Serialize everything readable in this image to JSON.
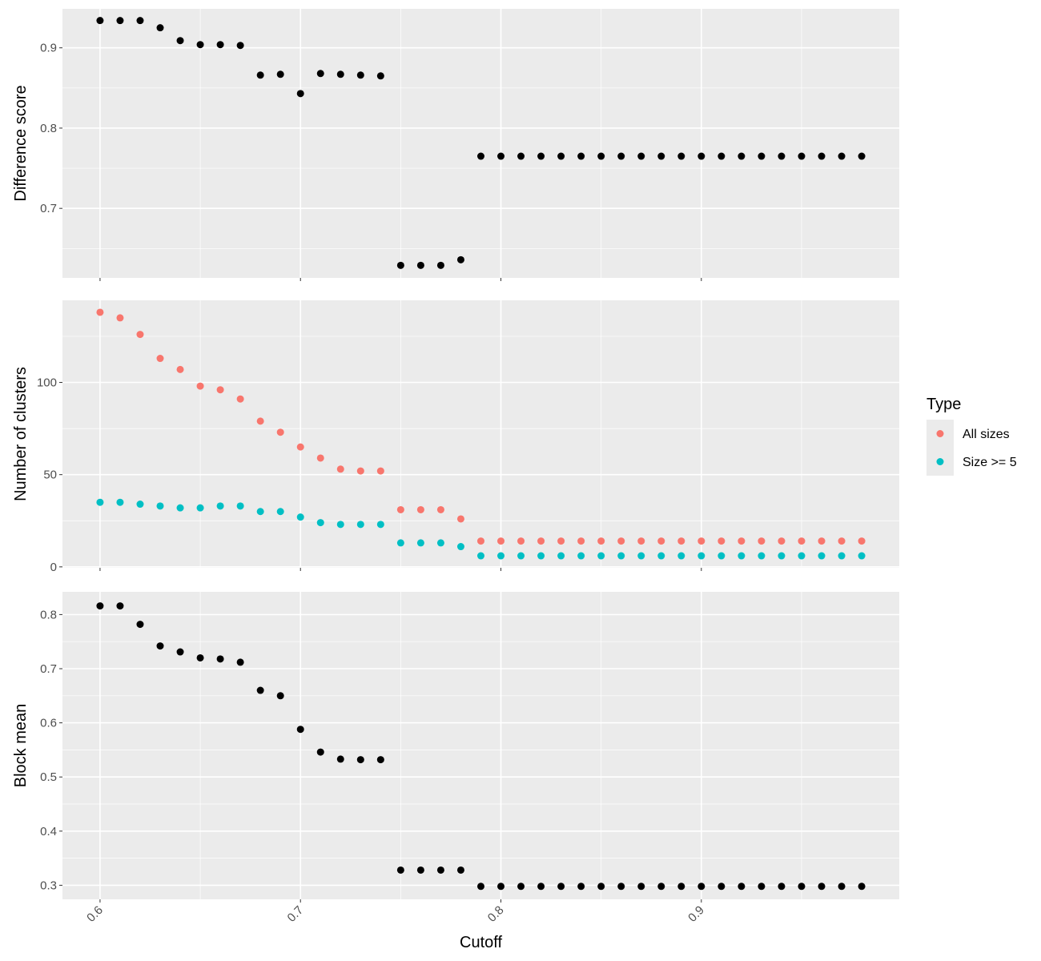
{
  "chart_data": {
    "type": "scatter",
    "x_label": "Cutoff",
    "x_range": [
      0.58125,
      0.99875
    ],
    "x_ticks": [
      0.6,
      0.7,
      0.8,
      0.9
    ],
    "x_tick_labels": [
      "0.6",
      "0.7",
      "0.8",
      "0.9"
    ],
    "x": [
      0.6,
      0.61,
      0.62,
      0.63,
      0.64,
      0.65,
      0.66,
      0.67,
      0.68,
      0.69,
      0.7,
      0.71,
      0.72,
      0.73,
      0.74,
      0.75,
      0.76,
      0.77,
      0.78,
      0.79,
      0.8,
      0.81,
      0.82,
      0.83,
      0.84,
      0.85,
      0.86,
      0.87,
      0.88,
      0.89,
      0.9,
      0.91,
      0.92,
      0.93,
      0.94,
      0.95,
      0.96,
      0.97,
      0.98
    ],
    "grid": true,
    "point_color_default": "#000000",
    "panels": [
      {
        "y_label": "Difference score",
        "y_range": [
          0.6134,
          0.9486
        ],
        "y_ticks": [
          0.7,
          0.8,
          0.9
        ],
        "y_tick_labels": [
          "0.7",
          "0.8",
          "0.9"
        ],
        "series": [
          {
            "color": "#000000",
            "values": [
              0.934,
              0.934,
              0.934,
              0.925,
              0.909,
              0.904,
              0.904,
              0.903,
              0.866,
              0.867,
              0.843,
              0.868,
              0.867,
              0.866,
              0.865,
              0.629,
              0.629,
              0.629,
              0.636,
              0.765,
              0.765,
              0.765,
              0.765,
              0.765,
              0.765,
              0.765,
              0.765,
              0.765,
              0.765,
              0.765,
              0.765,
              0.765,
              0.765,
              0.765,
              0.765,
              0.765,
              0.765,
              0.765,
              0.765
            ]
          }
        ]
      },
      {
        "y_label": "Number of clusters",
        "y_range": [
          -0.5,
          144.5
        ],
        "y_ticks": [
          0,
          50,
          100
        ],
        "y_tick_labels": [
          "0",
          "50",
          "100"
        ],
        "series": [
          {
            "name": "All sizes",
            "color": "#F8766D",
            "values": [
              138,
              135,
              126,
              113,
              107,
              98,
              96,
              91,
              79,
              73,
              65,
              59,
              53,
              52,
              52,
              31,
              31,
              31,
              26,
              14,
              14,
              14,
              14,
              14,
              14,
              14,
              14,
              14,
              14,
              14,
              14,
              14,
              14,
              14,
              14,
              14,
              14,
              14,
              14
            ]
          },
          {
            "name": "Size >= 5",
            "color": "#00BFC4",
            "values": [
              35,
              35,
              34,
              33,
              32,
              32,
              33,
              33,
              30,
              30,
              27,
              24,
              23,
              23,
              23,
              13,
              13,
              13,
              11,
              6,
              6,
              6,
              6,
              6,
              6,
              6,
              6,
              6,
              6,
              6,
              6,
              6,
              6,
              6,
              6,
              6,
              6,
              6,
              6
            ]
          }
        ]
      },
      {
        "y_label": "Block mean",
        "y_range": [
          0.274,
          0.842
        ],
        "y_ticks": [
          0.3,
          0.4,
          0.5,
          0.6,
          0.7,
          0.8
        ],
        "y_tick_labels": [
          "0.3",
          "0.4",
          "0.5",
          "0.6",
          "0.7",
          "0.8"
        ],
        "series": [
          {
            "color": "#000000",
            "values": [
              0.816,
              0.816,
              0.782,
              0.742,
              0.731,
              0.72,
              0.718,
              0.712,
              0.66,
              0.65,
              0.588,
              0.546,
              0.533,
              0.532,
              0.532,
              0.328,
              0.328,
              0.328,
              0.328,
              0.298,
              0.298,
              0.298,
              0.298,
              0.298,
              0.298,
              0.298,
              0.298,
              0.298,
              0.298,
              0.298,
              0.298,
              0.298,
              0.298,
              0.298,
              0.298,
              0.298,
              0.298,
              0.298,
              0.298
            ]
          }
        ]
      }
    ],
    "legend": {
      "title": "Type",
      "position": "right",
      "items": [
        {
          "label": "All sizes",
          "color": "#F8766D"
        },
        {
          "label": "Size >= 5",
          "color": "#00BFC4"
        }
      ]
    }
  },
  "colors": {
    "panel_background": "#EBEBEB",
    "major_grid": "#FFFFFF",
    "tick_text": "#4D4D4D",
    "axis_tick": "#333333"
  }
}
